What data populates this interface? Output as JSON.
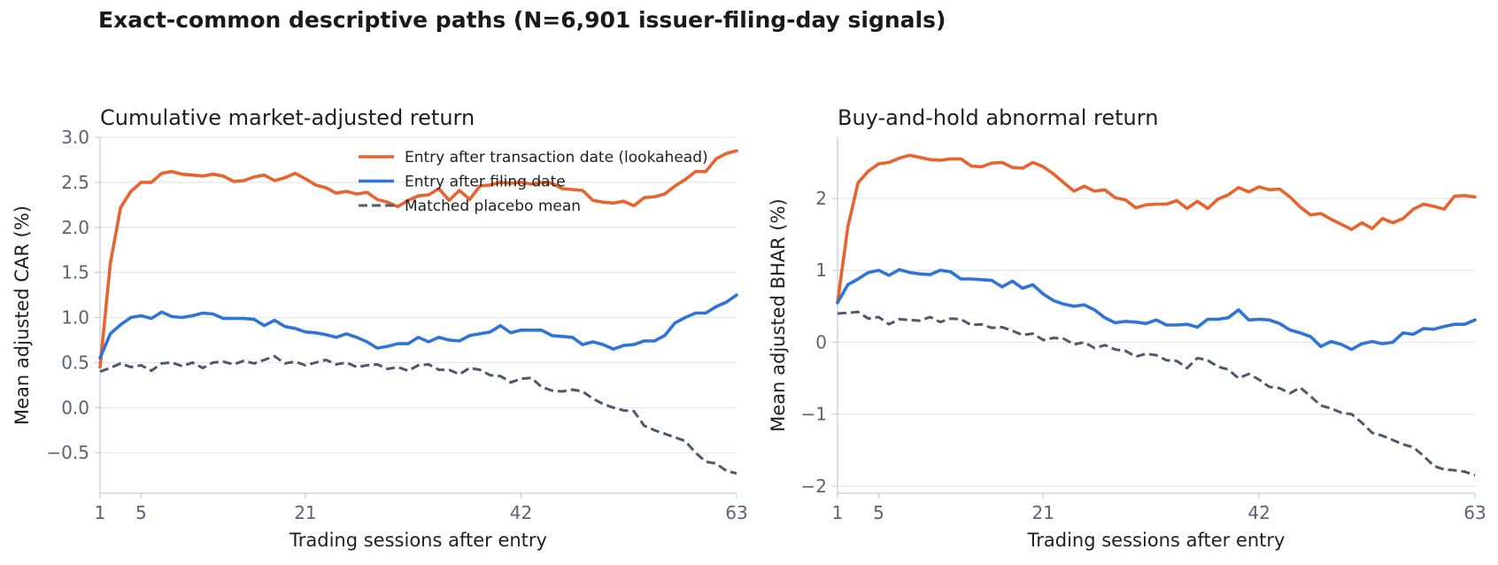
{
  "figure": {
    "title": "Exact-common descriptive paths (N=6,901 issuer-filing-day signals)"
  },
  "colors": {
    "lookahead": "#e8642f",
    "filing": "#2f74d6",
    "placebo": "#4d5a6a",
    "grid": "#e3e6ea",
    "axis": "#c9ced4"
  },
  "chart_data": [
    {
      "type": "line",
      "title": "Cumulative market-adjusted return",
      "xlabel": "Trading sessions after entry",
      "ylabel": "Mean adjusted CAR (%)",
      "xlim": [
        1,
        63
      ],
      "ylim": [
        -0.95,
        3.0
      ],
      "xticks": [
        1,
        5,
        21,
        42,
        63
      ],
      "yticks": [
        3.0,
        2.5,
        2.0,
        1.5,
        1.0,
        0.5,
        0.0,
        -0.5
      ],
      "ytick_labels": [
        "3.0",
        "2.5",
        "2.0",
        "1.5",
        "1.0",
        "0.5",
        "0.0",
        "−0.5"
      ],
      "grid": "horizontal",
      "legend": "top-right",
      "series": [
        {
          "name": "Entry after transaction date (lookahead)",
          "style": "solid",
          "color": "#e8642f",
          "x": [
            1,
            2,
            3,
            4,
            5,
            6,
            7,
            8,
            9,
            10,
            11,
            12,
            13,
            14,
            15,
            16,
            17,
            18,
            19,
            20,
            21,
            22,
            23,
            24,
            25,
            26,
            27,
            28,
            29,
            30,
            31,
            32,
            33,
            34,
            35,
            36,
            37,
            38,
            39,
            40,
            41,
            42,
            43,
            44,
            45,
            46,
            47,
            48,
            49,
            50,
            51,
            52,
            53,
            54,
            55,
            56,
            57,
            58,
            59,
            60,
            61,
            62,
            63
          ],
          "values": [
            0.45,
            1.6,
            2.22,
            2.4,
            2.5,
            2.5,
            2.6,
            2.62,
            2.59,
            2.58,
            2.57,
            2.59,
            2.57,
            2.51,
            2.52,
            2.56,
            2.58,
            2.52,
            2.55,
            2.6,
            2.54,
            2.47,
            2.44,
            2.38,
            2.4,
            2.37,
            2.39,
            2.31,
            2.28,
            2.23,
            2.3,
            2.35,
            2.36,
            2.43,
            2.3,
            2.41,
            2.31,
            2.46,
            2.47,
            2.5,
            2.49,
            2.5,
            2.48,
            2.5,
            2.49,
            2.43,
            2.42,
            2.41,
            2.3,
            2.28,
            2.27,
            2.29,
            2.24,
            2.33,
            2.34,
            2.37,
            2.46,
            2.53,
            2.62,
            2.62,
            2.76,
            2.82,
            2.85
          ]
        },
        {
          "name": "Entry after filing date",
          "style": "solid",
          "color": "#2f74d6",
          "x": [
            1,
            2,
            3,
            4,
            5,
            6,
            7,
            8,
            9,
            10,
            11,
            12,
            13,
            14,
            15,
            16,
            17,
            18,
            19,
            20,
            21,
            22,
            23,
            24,
            25,
            26,
            27,
            28,
            29,
            30,
            31,
            32,
            33,
            34,
            35,
            36,
            37,
            38,
            39,
            40,
            41,
            42,
            43,
            44,
            45,
            46,
            47,
            48,
            49,
            50,
            51,
            52,
            53,
            54,
            55,
            56,
            57,
            58,
            59,
            60,
            61,
            62,
            63
          ],
          "values": [
            0.55,
            0.82,
            0.92,
            1.0,
            1.02,
            0.99,
            1.06,
            1.01,
            1.0,
            1.02,
            1.05,
            1.04,
            0.99,
            0.99,
            0.99,
            0.98,
            0.91,
            0.97,
            0.9,
            0.88,
            0.84,
            0.83,
            0.81,
            0.78,
            0.82,
            0.78,
            0.73,
            0.66,
            0.68,
            0.71,
            0.71,
            0.78,
            0.73,
            0.78,
            0.75,
            0.74,
            0.8,
            0.82,
            0.84,
            0.91,
            0.83,
            0.86,
            0.86,
            0.86,
            0.8,
            0.79,
            0.78,
            0.7,
            0.73,
            0.7,
            0.65,
            0.69,
            0.7,
            0.74,
            0.74,
            0.8,
            0.94,
            1.0,
            1.05,
            1.05,
            1.12,
            1.17,
            1.25
          ]
        },
        {
          "name": "Matched placebo mean",
          "style": "dashed",
          "color": "#4d5a6a",
          "x": [
            1,
            2,
            3,
            4,
            5,
            6,
            7,
            8,
            9,
            10,
            11,
            12,
            13,
            14,
            15,
            16,
            17,
            18,
            19,
            20,
            21,
            22,
            23,
            24,
            25,
            26,
            27,
            28,
            29,
            30,
            31,
            32,
            33,
            34,
            35,
            36,
            37,
            38,
            39,
            40,
            41,
            42,
            43,
            44,
            45,
            46,
            47,
            48,
            49,
            50,
            51,
            52,
            53,
            54,
            55,
            56,
            57,
            58,
            59,
            60,
            61,
            62,
            63
          ],
          "values": [
            0.4,
            0.44,
            0.49,
            0.45,
            0.47,
            0.41,
            0.49,
            0.5,
            0.46,
            0.5,
            0.44,
            0.5,
            0.51,
            0.48,
            0.52,
            0.49,
            0.53,
            0.57,
            0.49,
            0.51,
            0.47,
            0.5,
            0.53,
            0.48,
            0.5,
            0.45,
            0.47,
            0.48,
            0.43,
            0.45,
            0.41,
            0.47,
            0.48,
            0.42,
            0.42,
            0.37,
            0.44,
            0.42,
            0.36,
            0.35,
            0.28,
            0.32,
            0.33,
            0.23,
            0.19,
            0.18,
            0.2,
            0.18,
            0.1,
            0.04,
            0.0,
            -0.03,
            -0.04,
            -0.2,
            -0.25,
            -0.29,
            -0.33,
            -0.37,
            -0.5,
            -0.6,
            -0.62,
            -0.7,
            -0.73
          ]
        }
      ]
    },
    {
      "type": "line",
      "title": "Buy-and-hold abnormal return",
      "xlabel": "Trading sessions after entry",
      "ylabel": "Mean adjusted BHAR (%)",
      "xlim": [
        1,
        63
      ],
      "ylim": [
        -2.1,
        2.85
      ],
      "xticks": [
        1,
        5,
        21,
        42,
        63
      ],
      "yticks": [
        2,
        1,
        0,
        -1,
        -2
      ],
      "ytick_labels": [
        "2",
        "1",
        "0",
        "−1",
        "−2"
      ],
      "grid": "horizontal",
      "series": [
        {
          "name": "Entry after transaction date (lookahead)",
          "style": "solid",
          "color": "#e8642f",
          "x": [
            1,
            2,
            3,
            4,
            5,
            6,
            7,
            8,
            9,
            10,
            11,
            12,
            13,
            14,
            15,
            16,
            17,
            18,
            19,
            20,
            21,
            22,
            23,
            24,
            25,
            26,
            27,
            28,
            29,
            30,
            31,
            32,
            33,
            34,
            35,
            36,
            37,
            38,
            39,
            40,
            41,
            42,
            43,
            44,
            45,
            46,
            47,
            48,
            49,
            50,
            51,
            52,
            53,
            54,
            55,
            56,
            57,
            58,
            59,
            60,
            61,
            62,
            63
          ],
          "values": [
            0.55,
            1.6,
            2.22,
            2.38,
            2.48,
            2.5,
            2.56,
            2.6,
            2.57,
            2.54,
            2.53,
            2.55,
            2.55,
            2.45,
            2.44,
            2.49,
            2.5,
            2.43,
            2.42,
            2.5,
            2.44,
            2.34,
            2.22,
            2.1,
            2.17,
            2.1,
            2.12,
            2.01,
            1.98,
            1.87,
            1.91,
            1.92,
            1.92,
            1.97,
            1.86,
            1.96,
            1.86,
            1.99,
            2.05,
            2.15,
            2.09,
            2.16,
            2.12,
            2.13,
            2.02,
            1.88,
            1.77,
            1.79,
            1.71,
            1.64,
            1.57,
            1.66,
            1.58,
            1.72,
            1.66,
            1.72,
            1.85,
            1.92,
            1.89,
            1.85,
            2.03,
            2.04,
            2.02
          ]
        },
        {
          "name": "Entry after filing date",
          "style": "solid",
          "color": "#2f74d6",
          "x": [
            1,
            2,
            3,
            4,
            5,
            6,
            7,
            8,
            9,
            10,
            11,
            12,
            13,
            14,
            15,
            16,
            17,
            18,
            19,
            20,
            21,
            22,
            23,
            24,
            25,
            26,
            27,
            28,
            29,
            30,
            31,
            32,
            33,
            34,
            35,
            36,
            37,
            38,
            39,
            40,
            41,
            42,
            43,
            44,
            45,
            46,
            47,
            48,
            49,
            50,
            51,
            52,
            53,
            54,
            55,
            56,
            57,
            58,
            59,
            60,
            61,
            62,
            63
          ],
          "values": [
            0.55,
            0.8,
            0.88,
            0.97,
            1.0,
            0.93,
            1.01,
            0.97,
            0.95,
            0.94,
            1.0,
            0.98,
            0.88,
            0.88,
            0.87,
            0.86,
            0.77,
            0.85,
            0.75,
            0.8,
            0.67,
            0.58,
            0.53,
            0.5,
            0.52,
            0.45,
            0.34,
            0.27,
            0.29,
            0.28,
            0.26,
            0.31,
            0.24,
            0.24,
            0.25,
            0.21,
            0.32,
            0.32,
            0.34,
            0.45,
            0.31,
            0.32,
            0.31,
            0.26,
            0.17,
            0.13,
            0.08,
            -0.06,
            0.01,
            -0.03,
            -0.1,
            -0.02,
            0.01,
            -0.02,
            0.0,
            0.13,
            0.11,
            0.19,
            0.18,
            0.22,
            0.25,
            0.25,
            0.31
          ]
        },
        {
          "name": "Matched placebo mean",
          "style": "dashed",
          "color": "#4d5a6a",
          "x": [
            1,
            2,
            3,
            4,
            5,
            6,
            7,
            8,
            9,
            10,
            11,
            12,
            13,
            14,
            15,
            16,
            17,
            18,
            19,
            20,
            21,
            22,
            23,
            24,
            25,
            26,
            27,
            28,
            29,
            30,
            31,
            32,
            33,
            34,
            35,
            36,
            37,
            38,
            39,
            40,
            41,
            42,
            43,
            44,
            45,
            46,
            47,
            48,
            49,
            50,
            51,
            52,
            53,
            54,
            55,
            56,
            57,
            58,
            59,
            60,
            61,
            62,
            63
          ],
          "values": [
            0.4,
            0.41,
            0.42,
            0.33,
            0.35,
            0.25,
            0.32,
            0.31,
            0.3,
            0.35,
            0.28,
            0.33,
            0.32,
            0.24,
            0.25,
            0.2,
            0.21,
            0.16,
            0.1,
            0.12,
            0.03,
            0.06,
            0.05,
            -0.03,
            0.0,
            -0.08,
            -0.04,
            -0.1,
            -0.12,
            -0.2,
            -0.16,
            -0.18,
            -0.25,
            -0.26,
            -0.36,
            -0.22,
            -0.25,
            -0.34,
            -0.38,
            -0.5,
            -0.44,
            -0.52,
            -0.62,
            -0.64,
            -0.71,
            -0.63,
            -0.75,
            -0.88,
            -0.92,
            -0.98,
            -1.0,
            -1.12,
            -1.26,
            -1.3,
            -1.36,
            -1.42,
            -1.46,
            -1.58,
            -1.72,
            -1.77,
            -1.78,
            -1.8,
            -1.85
          ]
        }
      ]
    }
  ]
}
